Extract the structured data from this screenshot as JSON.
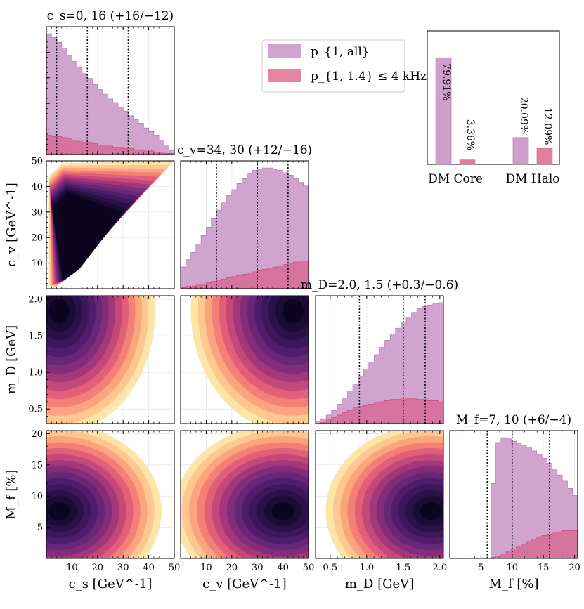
{
  "chart_data": {
    "type": "corner",
    "parameters": [
      {
        "key": "cs",
        "label": "c_s [GeV^-1]",
        "range": [
          0,
          50
        ],
        "ticks": [
          "10",
          "20",
          "30",
          "40",
          "50"
        ],
        "tick_values": [
          10,
          20,
          30,
          40,
          50
        ],
        "title": "c_s=0, 16 (+16/−12)",
        "quantiles": [
          4,
          16,
          32
        ],
        "hist_all": [
          1.0,
          0.97,
          0.93,
          0.88,
          0.82,
          0.77,
          0.72,
          0.67,
          0.63,
          0.58,
          0.54,
          0.5,
          0.46,
          0.43,
          0.39,
          0.36,
          0.32,
          0.29,
          0.26,
          0.22,
          0.19,
          0.16,
          0.12,
          0.08,
          0.04
        ],
        "hist_sub": [
          0.16,
          0.15,
          0.15,
          0.14,
          0.13,
          0.12,
          0.11,
          0.1,
          0.1,
          0.09,
          0.08,
          0.08,
          0.07,
          0.06,
          0.06,
          0.05,
          0.05,
          0.04,
          0.04,
          0.03,
          0.03,
          0.02,
          0.02,
          0.01,
          0.01
        ]
      },
      {
        "key": "cv",
        "label": "c_v [GeV^-1]",
        "range": [
          0,
          50
        ],
        "ticks": [
          "10",
          "20",
          "30",
          "40",
          "50"
        ],
        "tick_values": [
          10,
          20,
          30,
          40,
          50
        ],
        "title": "c_v=34, 30 (+12/−16)",
        "quantiles": [
          14,
          30,
          42
        ],
        "hist_all": [
          0.18,
          0.24,
          0.3,
          0.37,
          0.44,
          0.51,
          0.58,
          0.65,
          0.71,
          0.77,
          0.82,
          0.87,
          0.91,
          0.95,
          0.98,
          0.99,
          1.0,
          1.0,
          0.99,
          0.98,
          0.96,
          0.94,
          0.91,
          0.88,
          0.85
        ],
        "hist_sub": [
          0.01,
          0.02,
          0.02,
          0.03,
          0.04,
          0.05,
          0.06,
          0.07,
          0.08,
          0.09,
          0.1,
          0.11,
          0.12,
          0.13,
          0.14,
          0.15,
          0.16,
          0.17,
          0.18,
          0.19,
          0.2,
          0.21,
          0.22,
          0.23,
          0.23
        ]
      },
      {
        "key": "mD",
        "label": "m_D [GeV]",
        "range": [
          0.3,
          2.05
        ],
        "ticks": [
          "0.5",
          "1.0",
          "1.5",
          "2.0"
        ],
        "tick_values": [
          0.5,
          1.0,
          1.5,
          2.0
        ],
        "title": "m_D=2.0, 1.5 (+0.3/−0.6)",
        "quantiles": [
          0.9,
          1.5,
          1.8
        ],
        "hist_all": [
          0.02,
          0.04,
          0.07,
          0.11,
          0.16,
          0.21,
          0.27,
          0.33,
          0.39,
          0.45,
          0.51,
          0.57,
          0.63,
          0.69,
          0.74,
          0.79,
          0.84,
          0.88,
          0.92,
          0.95,
          0.97,
          0.98,
          0.99,
          1.0
        ],
        "hist_sub": [
          0.0,
          0.01,
          0.03,
          0.05,
          0.07,
          0.09,
          0.11,
          0.13,
          0.14,
          0.15,
          0.16,
          0.17,
          0.18,
          0.19,
          0.2,
          0.2,
          0.21,
          0.21,
          0.21,
          0.2,
          0.2,
          0.19,
          0.19,
          0.18
        ]
      },
      {
        "key": "Mf",
        "label": "M_f [%]",
        "range": [
          0,
          20.5
        ],
        "ticks": [
          "5",
          "10",
          "15",
          "20"
        ],
        "tick_values": [
          5,
          10,
          15,
          20
        ],
        "title": "M_f=7, 10 (+6/−4)",
        "quantiles": [
          6,
          10,
          16
        ],
        "hist_all": [
          0.0,
          0.0,
          0.0,
          0.0,
          0.0,
          0.0,
          0.0,
          0.0,
          0.62,
          0.96,
          1.0,
          0.99,
          0.97,
          0.95,
          0.94,
          0.92,
          0.89,
          0.86,
          0.83,
          0.79,
          0.74,
          0.69,
          0.64,
          0.58,
          0.52
        ],
        "hist_sub": [
          0.0,
          0.0,
          0.0,
          0.0,
          0.0,
          0.0,
          0.0,
          0.0,
          0.01,
          0.02,
          0.04,
          0.06,
          0.08,
          0.1,
          0.12,
          0.14,
          0.16,
          0.18,
          0.19,
          0.2,
          0.21,
          0.22,
          0.23,
          0.23,
          0.23
        ]
      }
    ],
    "density_peaks": [
      {
        "x": "cs",
        "y": "cv",
        "peak": [
          8,
          14
        ],
        "note": "mass concentrated above diagonal c_v ≥ c_s"
      },
      {
        "x": "cs",
        "y": "mD",
        "peak": [
          4,
          1.85
        ]
      },
      {
        "x": "cv",
        "y": "mD",
        "peak": [
          44,
          1.85
        ]
      },
      {
        "x": "cs",
        "y": "Mf",
        "peak": [
          5,
          7.5
        ]
      },
      {
        "x": "cv",
        "y": "Mf",
        "peak": [
          40,
          7.5
        ]
      },
      {
        "x": "mD",
        "y": "Mf",
        "peak": [
          1.85,
          7.5
        ]
      }
    ],
    "legend": [
      {
        "label": "p_{1, all}",
        "color": "#c994c7"
      },
      {
        "label": "p_{1, 1.4} ≤ 4 kHz",
        "color": "#e07090"
      }
    ],
    "inset_bar": {
      "categories": [
        "DM Core",
        "DM Halo"
      ],
      "series": [
        {
          "name": "p_{1, all}",
          "values": [
            79.91,
            20.09
          ],
          "labels": [
            "79.91%",
            "20.09%"
          ]
        },
        {
          "name": "p_{1, 1.4} ≤ 4 kHz",
          "values": [
            3.36,
            12.09
          ],
          "labels": [
            "3.36%",
            "12.09%"
          ]
        }
      ],
      "ylim": [
        0,
        100
      ]
    }
  }
}
